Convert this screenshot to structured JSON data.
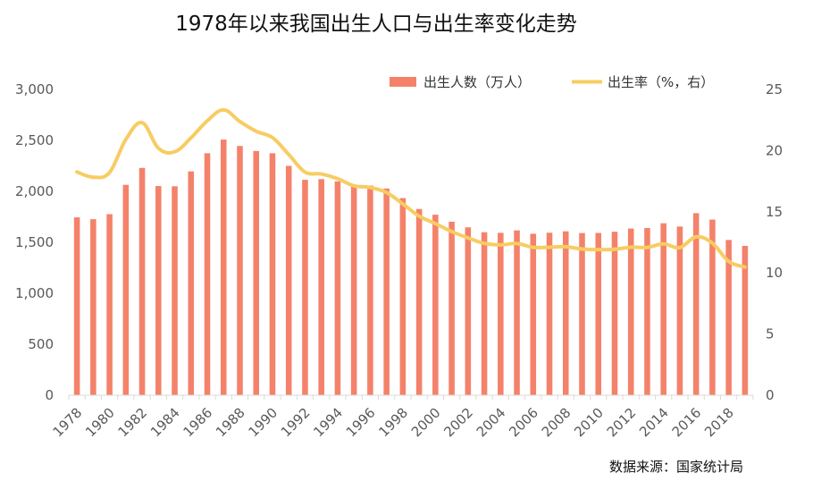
{
  "chart_data": {
    "type": "bar+line",
    "title": "1978年以来我国出生人口与出生率变化走势",
    "source": "数据来源：国家统计局",
    "years": [
      1978,
      1979,
      1980,
      1981,
      1982,
      1983,
      1984,
      1985,
      1986,
      1987,
      1988,
      1989,
      1990,
      1991,
      1992,
      1993,
      1994,
      1995,
      1996,
      1997,
      1998,
      1999,
      2000,
      2001,
      2002,
      2003,
      2004,
      2005,
      2006,
      2007,
      2008,
      2009,
      2010,
      2011,
      2012,
      2013,
      2014,
      2015,
      2016,
      2017,
      2018,
      2019
    ],
    "x_tick_labels": [
      "1978",
      "1980",
      "1982",
      "1984",
      "1986",
      "1988",
      "1990",
      "1992",
      "1994",
      "1996",
      "1998",
      "2000",
      "2002",
      "2004",
      "2006",
      "2008",
      "2010",
      "2012",
      "2014",
      "2016",
      "2018"
    ],
    "series": [
      {
        "name": "出生人数（万人）",
        "type": "bar",
        "axis": "left",
        "color": "#f4826a",
        "values": [
          1745,
          1727,
          1776,
          2064,
          2230,
          2052,
          2050,
          2196,
          2374,
          2508,
          2445,
          2396,
          2374,
          2250,
          2113,
          2120,
          2098,
          2052,
          2057,
          2028,
          1934,
          1827,
          1771,
          1702,
          1647,
          1599,
          1593,
          1617,
          1584,
          1594,
          1608,
          1591,
          1592,
          1604,
          1635,
          1640,
          1687,
          1655,
          1786,
          1723,
          1523,
          1465
        ]
      },
      {
        "name": "出生率（%，右）",
        "type": "line",
        "axis": "right",
        "color": "#f8cc63",
        "values": [
          18.25,
          17.82,
          18.21,
          20.91,
          22.28,
          20.19,
          19.9,
          21.04,
          22.43,
          23.33,
          22.37,
          21.58,
          21.06,
          19.68,
          18.24,
          18.09,
          17.7,
          17.12,
          16.98,
          16.57,
          15.64,
          14.64,
          14.03,
          13.38,
          12.86,
          12.41,
          12.29,
          12.4,
          12.09,
          12.1,
          12.14,
          11.95,
          11.9,
          11.93,
          12.1,
          12.08,
          12.37,
          12.07,
          12.95,
          12.43,
          10.94,
          10.48
        ]
      }
    ],
    "left_axis": {
      "ylim": [
        0,
        3000
      ],
      "ticks": [
        0,
        500,
        1000,
        1500,
        2000,
        2500,
        3000
      ],
      "tick_labels": [
        "0",
        "500",
        "1,000",
        "1,500",
        "2,000",
        "2,500",
        "3,000"
      ]
    },
    "right_axis": {
      "ylim": [
        0,
        25
      ],
      "ticks": [
        0,
        5,
        10,
        15,
        20,
        25
      ],
      "tick_labels": [
        "0",
        "5",
        "10",
        "15",
        "20",
        "25"
      ]
    },
    "grid": false,
    "legend_position": "top-right"
  }
}
